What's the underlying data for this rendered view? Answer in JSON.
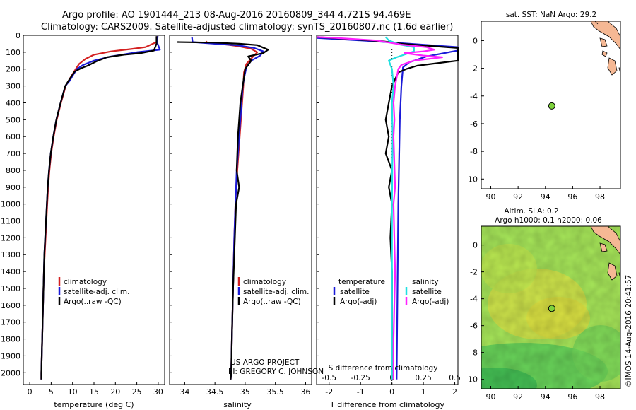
{
  "title": {
    "line1": "Argo profile: AO 1901444_213 08-Aug-2016 20160809_344 4.721S 94.469E",
    "line2": "Climatology: CARS2009. Satellite-adjusted climatology: synTS_20160807.nc (1.6d earlier)"
  },
  "colors": {
    "climatology": "#d42020",
    "satellite": "#1a1ad8",
    "argo": "#000000",
    "cyan": "#20e0e0",
    "magenta": "#ff20ff",
    "land": "#f5b894",
    "float": "#7ed23c"
  },
  "depth_axis": {
    "range": [
      0,
      2070
    ],
    "ticks": [
      "0",
      "100",
      "200",
      "300",
      "400",
      "500",
      "600",
      "700",
      "800",
      "900",
      "1000",
      "1100",
      "1200",
      "1300",
      "1400",
      "1500",
      "1600",
      "1700",
      "1800",
      "1900",
      "2000"
    ]
  },
  "chart_data": [
    {
      "type": "line",
      "panel": "temperature",
      "xlabel": "temperature (deg C)",
      "xlim": [
        -1.5,
        31.5
      ],
      "xticks": [
        "0",
        "5",
        "10",
        "15",
        "20",
        "25",
        "30"
      ],
      "legend": [
        "climatology",
        "satellite-adj. clim.",
        "Argo(..raw -QC)"
      ],
      "series": [
        {
          "name": "climatology",
          "color_key": "climatology",
          "points": [
            [
              29.8,
              5
            ],
            [
              29.6,
              40
            ],
            [
              27,
              70
            ],
            [
              24,
              80
            ],
            [
              19,
              95
            ],
            [
              15,
              115
            ],
            [
              13,
              140
            ],
            [
              11.5,
              170
            ],
            [
              10.5,
              210
            ],
            [
              9.5,
              250
            ],
            [
              8.4,
              300
            ],
            [
              7.3,
              400
            ],
            [
              6.3,
              500
            ],
            [
              5.6,
              600
            ],
            [
              5.0,
              700
            ],
            [
              4.6,
              800
            ],
            [
              4.3,
              900
            ],
            [
              4.1,
              1000
            ],
            [
              3.9,
              1100
            ],
            [
              3.7,
              1200
            ],
            [
              3.5,
              1300
            ],
            [
              3.3,
              1400
            ],
            [
              3.2,
              1500
            ],
            [
              3.1,
              1600
            ],
            [
              3.0,
              1700
            ],
            [
              2.9,
              1800
            ],
            [
              2.8,
              1900
            ],
            [
              2.7,
              2000
            ],
            [
              2.7,
              2040
            ]
          ]
        },
        {
          "name": "satellite-adj. clim.",
          "color_key": "satellite",
          "points": [
            [
              29.9,
              5
            ],
            [
              29.7,
              40
            ],
            [
              30.4,
              85
            ],
            [
              25,
              100
            ],
            [
              19,
              125
            ],
            [
              15,
              150
            ],
            [
              12.5,
              175
            ],
            [
              11,
              200
            ],
            [
              10,
              240
            ],
            [
              9.3,
              270
            ],
            [
              8.3,
              300
            ],
            [
              7.2,
              400
            ],
            [
              6.2,
              500
            ],
            [
              5.5,
              600
            ],
            [
              4.9,
              700
            ],
            [
              4.5,
              800
            ],
            [
              4.2,
              900
            ],
            [
              4.0,
              1000
            ],
            [
              3.8,
              1100
            ],
            [
              3.6,
              1200
            ],
            [
              3.4,
              1300
            ],
            [
              3.3,
              1400
            ],
            [
              3.2,
              1500
            ],
            [
              3.1,
              1600
            ],
            [
              3.0,
              1700
            ],
            [
              2.9,
              1800
            ],
            [
              2.8,
              1900
            ],
            [
              2.7,
              2000
            ],
            [
              2.7,
              2040
            ]
          ]
        },
        {
          "name": "Argo(..raw -QC)",
          "color_key": "argo",
          "points": [
            [
              29.6,
              5
            ],
            [
              29.6,
              50
            ],
            [
              29,
              90
            ],
            [
              26,
              105
            ],
            [
              22,
              115
            ],
            [
              18,
              130
            ],
            [
              15.5,
              155
            ],
            [
              13.5,
              180
            ],
            [
              12,
              195
            ],
            [
              10.5,
              215
            ],
            [
              9.3,
              260
            ],
            [
              8.3,
              300
            ],
            [
              7.2,
              400
            ],
            [
              6.2,
              500
            ],
            [
              5.5,
              600
            ],
            [
              4.9,
              700
            ],
            [
              4.5,
              800
            ],
            [
              4.2,
              900
            ],
            [
              4.0,
              1000
            ],
            [
              3.8,
              1100
            ],
            [
              3.6,
              1200
            ],
            [
              3.4,
              1300
            ],
            [
              3.3,
              1400
            ],
            [
              3.2,
              1500
            ],
            [
              3.1,
              1600
            ],
            [
              3.0,
              1700
            ],
            [
              2.9,
              1800
            ],
            [
              2.8,
              1900
            ],
            [
              2.7,
              2000
            ],
            [
              2.7,
              2040
            ]
          ]
        }
      ]
    },
    {
      "type": "line",
      "panel": "salinity",
      "xlabel": "salinity",
      "xlim": [
        33.75,
        36.1
      ],
      "xticks": [
        "34",
        "34.5",
        "35",
        "35.5",
        "36"
      ],
      "legend": [
        "climatology",
        "satellite-adj. clim.",
        "Argo(..raw -QC)"
      ],
      "series": [
        {
          "name": "climatology",
          "color_key": "climatology",
          "points": [
            [
              34.35,
              35
            ],
            [
              34.38,
              45
            ],
            [
              34.7,
              55
            ],
            [
              34.9,
              65
            ],
            [
              35.1,
              80
            ],
            [
              35.2,
              100
            ],
            [
              35.12,
              130
            ],
            [
              35.02,
              170
            ],
            [
              34.98,
              220
            ],
            [
              34.97,
              300
            ],
            [
              34.95,
              400
            ],
            [
              34.93,
              500
            ],
            [
              34.91,
              600
            ],
            [
              34.89,
              700
            ],
            [
              34.87,
              800
            ],
            [
              34.85,
              900
            ],
            [
              34.84,
              1000
            ],
            [
              34.82,
              1200
            ],
            [
              34.8,
              1500
            ],
            [
              34.78,
              1800
            ],
            [
              34.77,
              2000
            ],
            [
              34.76,
              2040
            ]
          ]
        },
        {
          "name": "satellite-adj. clim.",
          "color_key": "satellite",
          "points": [
            [
              34.12,
              10
            ],
            [
              34.13,
              40
            ],
            [
              34.5,
              50
            ],
            [
              34.9,
              60
            ],
            [
              35.15,
              75
            ],
            [
              35.3,
              95
            ],
            [
              35.25,
              120
            ],
            [
              35.1,
              150
            ],
            [
              35.02,
              190
            ],
            [
              34.99,
              240
            ],
            [
              34.96,
              300
            ],
            [
              34.94,
              400
            ],
            [
              34.92,
              500
            ],
            [
              34.9,
              600
            ],
            [
              34.88,
              700
            ],
            [
              34.86,
              800
            ],
            [
              34.85,
              900
            ],
            [
              34.84,
              1000
            ],
            [
              34.82,
              1200
            ],
            [
              34.8,
              1500
            ],
            [
              34.78,
              1800
            ],
            [
              34.77,
              2000
            ],
            [
              34.76,
              2040
            ]
          ]
        },
        {
          "name": "Argo(..raw -QC)",
          "color_key": "argo",
          "points": [
            [
              33.88,
              40
            ],
            [
              34.5,
              43
            ],
            [
              34.9,
              50
            ],
            [
              35.2,
              58
            ],
            [
              35.38,
              85
            ],
            [
              35.3,
              105
            ],
            [
              35.05,
              125
            ],
            [
              35.1,
              150
            ],
            [
              35.0,
              200
            ],
            [
              34.96,
              300
            ],
            [
              34.92,
              400
            ],
            [
              34.9,
              500
            ],
            [
              34.88,
              600
            ],
            [
              34.86,
              800
            ],
            [
              34.9,
              900
            ],
            [
              34.85,
              1000
            ],
            [
              34.83,
              1200
            ],
            [
              34.8,
              1500
            ],
            [
              34.78,
              1800
            ],
            [
              34.77,
              2000
            ],
            [
              34.76,
              2040
            ]
          ]
        }
      ]
    },
    {
      "type": "line",
      "panel": "difference",
      "xlabel": "T difference from climatology",
      "xlabel_s": "S difference from climatology",
      "xlim": [
        -2.4,
        2.1
      ],
      "xticks_t": [
        "-2",
        "-1",
        "0",
        "1",
        "2"
      ],
      "xticks_s": [
        "-0.5",
        "-0.25",
        "0",
        "0.25",
        "0.5"
      ],
      "legend_temperature": {
        "heading": "temperature",
        "items": [
          "satellite",
          "Argo(-adj)"
        ]
      },
      "legend_salinity": {
        "heading": "salinity",
        "items": [
          "satellite",
          "Argo(-adj)"
        ]
      },
      "series": [
        {
          "name": "T satellite",
          "color_key": "satellite",
          "points": [
            [
              -2.4,
              15
            ],
            [
              -1,
              30
            ],
            [
              0.2,
              45
            ],
            [
              2.1,
              70
            ],
            [
              2.1,
              90
            ],
            [
              1.1,
              125
            ],
            [
              0.55,
              160
            ],
            [
              0.35,
              190
            ],
            [
              0.3,
              300
            ],
            [
              0.25,
              500
            ],
            [
              0.2,
              1000
            ],
            [
              0.15,
              2040
            ]
          ]
        },
        {
          "name": "T Argo(-adj)",
          "color_key": "argo",
          "points": [
            [
              -2.4,
              10
            ],
            [
              -1.5,
              20
            ],
            [
              -0.3,
              35
            ],
            [
              0.3,
              50
            ],
            [
              2.1,
              75
            ],
            [
              2.1,
              150
            ],
            [
              0.8,
              180
            ],
            [
              0.45,
              200
            ],
            [
              0.2,
              220
            ],
            [
              0.0,
              300
            ],
            [
              -0.1,
              400
            ],
            [
              -0.2,
              500
            ],
            [
              -0.1,
              600
            ],
            [
              -0.2,
              700
            ],
            [
              0.0,
              800
            ],
            [
              -0.1,
              900
            ],
            [
              0.0,
              1000
            ],
            [
              -0.05,
              1200
            ],
            [
              0.0,
              1400
            ],
            [
              0.0,
              1600
            ],
            [
              0.0,
              2040
            ]
          ]
        },
        {
          "name": "S satellite",
          "color_key": "cyan",
          "points": [
            [
              -0.2,
              10
            ],
            [
              -0.1,
              30
            ],
            [
              0.25,
              55
            ],
            [
              0.7,
              70
            ],
            [
              0.7,
              95
            ],
            [
              0.15,
              130
            ],
            [
              -0.1,
              150
            ],
            [
              0.0,
              200
            ],
            [
              0.05,
              300
            ],
            [
              0.0,
              400
            ],
            [
              0.02,
              600
            ],
            [
              0.0,
              1000
            ],
            [
              0.0,
              2040
            ]
          ]
        },
        {
          "name": "S Argo(-adj)",
          "color_key": "magenta",
          "points": [
            [
              -2.4,
              10
            ],
            [
              -1.8,
              15
            ],
            [
              -0.5,
              30
            ],
            [
              0.3,
              55
            ],
            [
              1.1,
              70
            ],
            [
              1.35,
              85
            ],
            [
              1.0,
              95
            ],
            [
              0.4,
              105
            ],
            [
              1.0,
              120
            ],
            [
              1.6,
              130
            ],
            [
              0.7,
              150
            ],
            [
              0.3,
              175
            ],
            [
              0.2,
              200
            ],
            [
              0.1,
              300
            ],
            [
              0.05,
              400
            ],
            [
              0.08,
              500
            ],
            [
              0.05,
              600
            ],
            [
              0.1,
              900
            ],
            [
              0.05,
              1000
            ],
            [
              0.1,
              1400
            ],
            [
              0.05,
              1800
            ],
            [
              0.05,
              2040
            ]
          ]
        }
      ]
    },
    {
      "type": "scatter",
      "panel": "sst_map",
      "title": "sat. SST: NaN  Argo: 29.2",
      "xlim": [
        89.3,
        99.5
      ],
      "ylim": [
        -10.7,
        1.4
      ],
      "xticks": [
        "90",
        "92",
        "94",
        "96",
        "98"
      ],
      "yticks": [
        "0",
        "-2",
        "-4",
        "-6",
        "-8",
        "-10"
      ],
      "points": [
        [
          94.469,
          -4.721
        ]
      ]
    },
    {
      "type": "heatmap",
      "panel": "sla_map",
      "title_line1": "Altim. SLA: 0.2",
      "title_line2": "Argo h1000: 0.1  h2000: 0.06",
      "xlim": [
        89.3,
        99.5
      ],
      "ylim": [
        -10.7,
        1.4
      ],
      "xticks": [
        "90",
        "92",
        "94",
        "96",
        "98"
      ],
      "yticks": [
        "0",
        "-2",
        "-4",
        "-6",
        "-8",
        "-10"
      ],
      "points": [
        [
          94.469,
          -4.721
        ]
      ]
    }
  ],
  "annotations": {
    "project": "US ARGO PROJECT",
    "pi": "PI: GREGORY C. JOHNSON",
    "stamp": "©IMOS 14-Aug-2016 20:41:57"
  }
}
